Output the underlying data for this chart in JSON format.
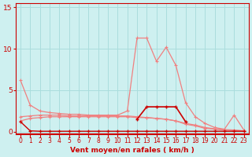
{
  "x": [
    0,
    1,
    2,
    3,
    4,
    5,
    6,
    7,
    8,
    9,
    10,
    11,
    12,
    13,
    14,
    15,
    16,
    17,
    18,
    19,
    20,
    21,
    22,
    23
  ],
  "line1_rafales": [
    6.2,
    3.2,
    2.5,
    2.3,
    2.2,
    2.1,
    2.1,
    2.0,
    2.0,
    2.0,
    2.0,
    2.5,
    11.3,
    11.3,
    8.5,
    10.2,
    8.0,
    3.5,
    1.8,
    1.0,
    0.5,
    0.3,
    2.0,
    0.2
  ],
  "line2_moyen": [
    1.2,
    0.1,
    0.05,
    0.05,
    0.05,
    0.05,
    0.05,
    0.05,
    0.05,
    0.05,
    0.05,
    0.05,
    0.05,
    0.05,
    0.05,
    0.05,
    0.05,
    0.05,
    0.05,
    0.05,
    0.05,
    0.05,
    0.05,
    0.05
  ],
  "line3": [
    1.8,
    1.9,
    2.0,
    2.0,
    2.0,
    1.9,
    1.9,
    1.9,
    1.9,
    1.9,
    1.9,
    1.9,
    1.8,
    1.7,
    1.6,
    1.5,
    1.3,
    0.9,
    0.7,
    0.4,
    0.3,
    0.2,
    0.15,
    0.1
  ],
  "line4": [
    1.3,
    1.6,
    1.7,
    1.8,
    1.8,
    1.8,
    1.8,
    1.8,
    1.8,
    1.8,
    1.8,
    1.8,
    1.7,
    1.7,
    1.6,
    1.5,
    1.3,
    1.0,
    0.8,
    0.5,
    0.35,
    0.25,
    0.2,
    0.1
  ],
  "line5_dark": [
    null,
    null,
    null,
    null,
    null,
    null,
    null,
    null,
    null,
    null,
    null,
    null,
    1.5,
    3.0,
    3.0,
    3.0,
    3.0,
    1.2,
    null,
    null,
    null,
    null,
    null,
    null
  ],
  "background_color": "#cef0f0",
  "grid_color": "#aadddd",
  "line_color_light": "#f08080",
  "line_color_dark": "#cc0000",
  "axis_color": "#cc0000",
  "yticks": [
    0,
    5,
    10,
    15
  ],
  "xticks": [
    0,
    1,
    2,
    3,
    4,
    5,
    6,
    7,
    8,
    9,
    10,
    11,
    12,
    13,
    14,
    15,
    16,
    17,
    18,
    19,
    20,
    21,
    22,
    23
  ],
  "xlabel": "Vent moyen/en rafales ( km/h )",
  "ylim": [
    -0.3,
    15.5
  ],
  "xlim": [
    -0.5,
    23.5
  ]
}
